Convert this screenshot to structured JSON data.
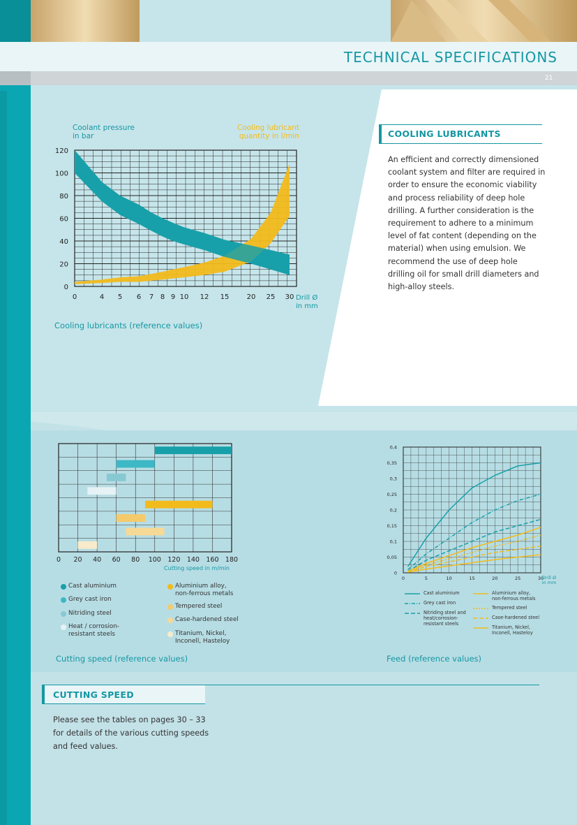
{
  "header": {
    "title": "TECHNICAL SPECIFICATIONS",
    "page_number": "21"
  },
  "cooling": {
    "heading": "COOLING LUBRICANTS",
    "text": "An efficient and correctly dimensioned coolant system and filter are required in order to ensure the economic viability and process reliability of deep hole drilling. A further consideration is the requirement to adhere to a minimum level of fat content  (depending on the material) when using emulsion. We recommend the use of deep hole drilling oil for small drill diameters and high-alloy steels."
  },
  "cutting_section": {
    "heading": "CUTTING SPEED",
    "text": "Please see the tables on pages 30 – 33 for details of the various cutting speeds and feed values."
  },
  "chart_data": [
    {
      "type": "area",
      "caption": "Cooling lubricants (reference values)",
      "ylabel": "Coolant pressure in bar",
      "y2label": "Cooling lubricant quantity in l/min",
      "xlabel": "Drill Ø in mm",
      "x_ticks": [
        "0",
        "4",
        "5",
        "6",
        "7",
        "8",
        "9",
        "10",
        "12",
        "15",
        "20",
        "25",
        "30"
      ],
      "y_ticks": [
        "0",
        "20",
        "40",
        "60",
        "80",
        "100",
        "120"
      ],
      "ylim": [
        0,
        120
      ],
      "grid": true,
      "colors": {
        "pressure": "#17a0a9",
        "quantity": "#f2bb1c"
      },
      "series": [
        {
          "band": "pressure",
          "x": [
            0,
            4,
            5,
            6,
            7,
            8,
            9,
            10,
            12,
            15,
            20,
            25,
            30
          ],
          "upper": [
            120,
            92,
            80,
            72,
            65,
            60,
            56,
            52,
            47,
            41,
            36,
            32,
            28
          ],
          "lower": [
            100,
            75,
            63,
            55,
            49,
            44,
            40,
            37,
            32,
            26,
            20,
            15,
            10
          ]
        },
        {
          "band": "quantity",
          "x": [
            0,
            4,
            5,
            6,
            7,
            8,
            9,
            10,
            12,
            15,
            20,
            25,
            30
          ],
          "upper": [
            4,
            6,
            8,
            9,
            11,
            13,
            15,
            17,
            21,
            27,
            42,
            65,
            108
          ],
          "lower": [
            2,
            3,
            4,
            4,
            5,
            6,
            7,
            8,
            10,
            13,
            22,
            38,
            62
          ]
        }
      ]
    },
    {
      "type": "bar",
      "orientation": "horizontal-range",
      "caption": "Cutting speed (reference values)",
      "xlabel": "Cutting speed in m/min",
      "x_ticks": [
        "0",
        "20",
        "40",
        "60",
        "80",
        "100",
        "120",
        "140",
        "160",
        "180"
      ],
      "xlim": [
        0,
        180
      ],
      "grid": true,
      "ranges": [
        {
          "name": "Cast aluminium",
          "from": 100,
          "to": 180,
          "color": "#17a0a9"
        },
        {
          "name": "Grey cast iron",
          "from": 60,
          "to": 100,
          "color": "#3cb8c6"
        },
        {
          "name": "Nitriding steel",
          "from": 50,
          "to": 70,
          "color": "#87c9d2"
        },
        {
          "name": "Heat / corrosion-resistant steels",
          "from": 30,
          "to": 60,
          "color": "#e6f2f5"
        },
        {
          "name": "Aluminium alloy, non-ferrous metals",
          "from": 90,
          "to": 160,
          "color": "#f2bb1c"
        },
        {
          "name": "Tempered steel",
          "from": 60,
          "to": 90,
          "color": "#f4ca6a"
        },
        {
          "name": "Case-hardened steel",
          "from": 70,
          "to": 110,
          "color": "#f6d995"
        },
        {
          "name": "Titanium, Nickel, Inconell, Hasteloy",
          "from": 20,
          "to": 40,
          "color": "#f7ebcb"
        }
      ],
      "legend_labels": [
        "Cast aluminium",
        "Grey cast iron",
        "Nitriding steel",
        "Heat / corrosion-\nresistant steels",
        "Aluminium alloy,\nnon-ferrous metals",
        "Tempered steel",
        "Case-hardened steel",
        "Titanium, Nickel,\nInconell, Hasteloy"
      ]
    },
    {
      "type": "line",
      "caption": "Feed (reference values)",
      "xlabel": "Drill Ø in mm",
      "x_ticks": [
        "0",
        "5",
        "10",
        "15",
        "20",
        "25",
        "30"
      ],
      "y_ticks": [
        "0",
        "0,05",
        "0,1",
        "0,15",
        "0,2",
        "0,25",
        "0,3",
        "0,35",
        "0,4"
      ],
      "xlim": [
        0,
        30
      ],
      "ylim": [
        0,
        0.4
      ],
      "grid": true,
      "series": [
        {
          "name": "Cast aluminium",
          "color": "#17a0a9",
          "dash": "solid",
          "x": [
            1,
            5,
            10,
            15,
            20,
            25,
            30
          ],
          "y": [
            0.02,
            0.11,
            0.2,
            0.27,
            0.31,
            0.34,
            0.35
          ]
        },
        {
          "name": "Grey cast iron",
          "color": "#17a0a9",
          "dash": "dashdot",
          "x": [
            1,
            5,
            10,
            15,
            20,
            25,
            30
          ],
          "y": [
            0.01,
            0.06,
            0.11,
            0.16,
            0.2,
            0.23,
            0.25
          ]
        },
        {
          "name": "Nitriding steel and heat/corrosion-resistant steels",
          "color": "#17a0a9",
          "dash": "dashed",
          "x": [
            1,
            5,
            10,
            15,
            20,
            25,
            30
          ],
          "y": [
            0.005,
            0.04,
            0.07,
            0.1,
            0.13,
            0.15,
            0.17
          ]
        },
        {
          "name": "Aluminium alloy, non-ferrous metals",
          "color": "#f2bb1c",
          "dash": "solid",
          "x": [
            1,
            5,
            10,
            15,
            20,
            25,
            30
          ],
          "y": [
            0.005,
            0.03,
            0.055,
            0.08,
            0.1,
            0.12,
            0.145
          ]
        },
        {
          "name": "Tempered steel",
          "color": "#f2bb1c",
          "dash": "dotted",
          "x": [
            1,
            5,
            10,
            15,
            20,
            25,
            30
          ],
          "y": [
            0.004,
            0.025,
            0.045,
            0.065,
            0.085,
            0.1,
            0.12
          ]
        },
        {
          "name": "Case-hardened steel",
          "color": "#f2bb1c",
          "dash": "dashed",
          "x": [
            1,
            5,
            10,
            15,
            20,
            25,
            30
          ],
          "y": [
            0.003,
            0.02,
            0.035,
            0.05,
            0.065,
            0.075,
            0.085
          ]
        },
        {
          "name": "Titanium, Nickel, Inconell, Hasteloy",
          "color": "#f2bb1c",
          "dash": "solid",
          "x": [
            1,
            5,
            10,
            15,
            20,
            25,
            30
          ],
          "y": [
            0.002,
            0.012,
            0.022,
            0.032,
            0.042,
            0.05,
            0.058
          ]
        }
      ],
      "legend_labels": [
        "Cast aluminium",
        "Grey cast iron",
        "Nitriding steel and\nheat/corrosion-\nresistant steels",
        "Aluminium alloy,\nnon-ferrous metals",
        "Tempered steel",
        "Case-hardened steel",
        "Titanium, Nickel,\nInconell, Hasteloy"
      ]
    }
  ]
}
